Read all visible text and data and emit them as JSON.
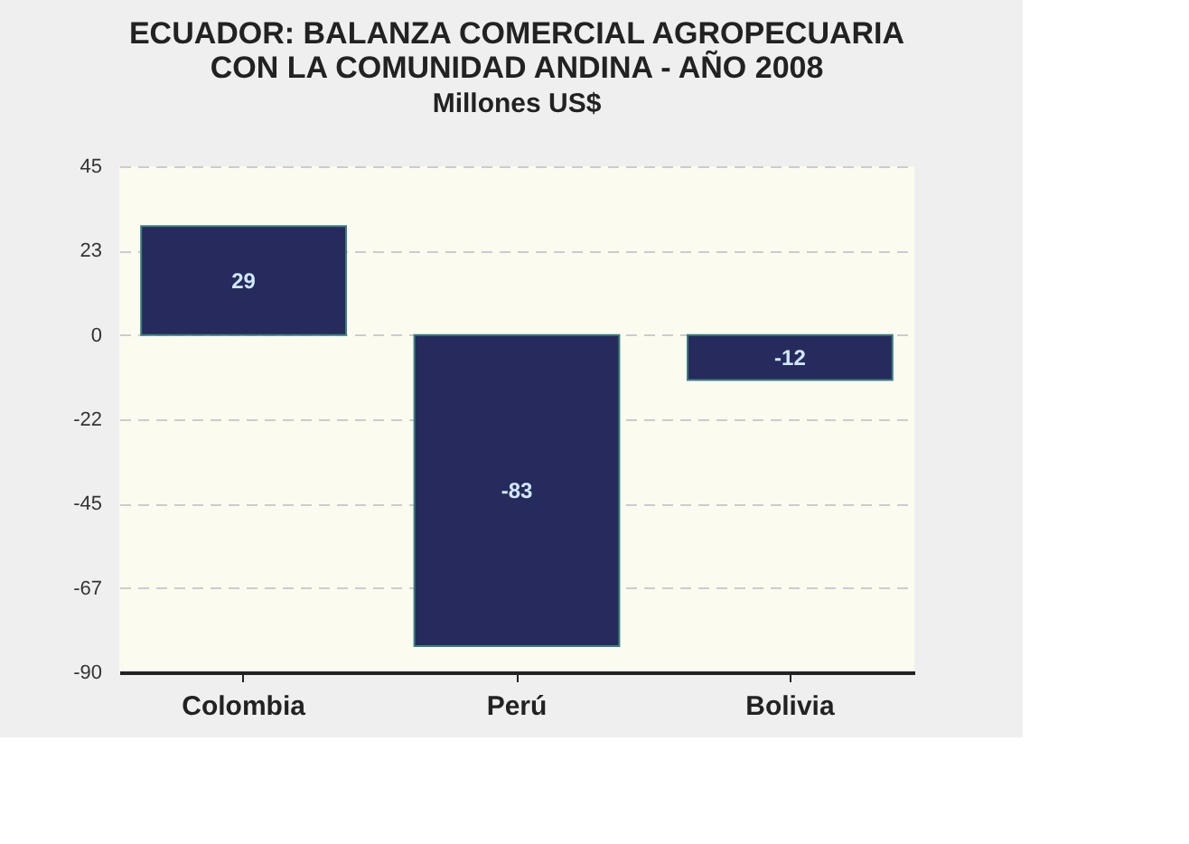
{
  "chart_data": {
    "type": "bar",
    "title": "ECUADOR: BALANZA COMERCIAL AGROPECUARIA CON LA COMUNIDAD ANDINA - AÑO 2008",
    "subtitle": "Millones US$",
    "categories": [
      "Colombia",
      "Perú",
      "Bolivia"
    ],
    "values": [
      29,
      -83,
      -12
    ],
    "color": "#262a5c",
    "data_labels": true,
    "ylim": [
      -90,
      45
    ],
    "yticks": [
      45,
      {
        "value": 22.5,
        "label": "23"
      },
      0,
      {
        "value": -22.5,
        "label": "-22"
      },
      -45,
      {
        "value": -67.5,
        "label": "-67"
      },
      -90
    ],
    "grid": "y"
  }
}
